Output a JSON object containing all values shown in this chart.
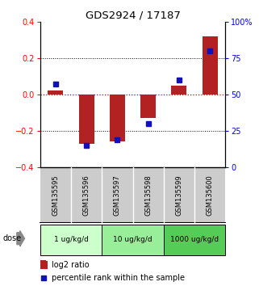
{
  "title": "GDS2924 / 17187",
  "samples": [
    "GSM135595",
    "GSM135596",
    "GSM135597",
    "GSM135598",
    "GSM135599",
    "GSM135600"
  ],
  "log2_ratio": [
    0.02,
    -0.27,
    -0.26,
    -0.13,
    0.05,
    0.32
  ],
  "percentile_rank": [
    57,
    15,
    19,
    30,
    60,
    80
  ],
  "ylim_left": [
    -0.4,
    0.4
  ],
  "ylim_right": [
    0,
    100
  ],
  "yticks_left": [
    -0.4,
    -0.2,
    0.0,
    0.2,
    0.4
  ],
  "yticks_right": [
    0,
    25,
    50,
    75,
    100
  ],
  "ytick_labels_right": [
    "0",
    "25",
    "50",
    "75",
    "100%"
  ],
  "bar_color": "#b22222",
  "dot_color": "#1111bb",
  "zero_line_color": "#cc0000",
  "dose_groups": [
    {
      "label": "1 ug/kg/d",
      "color": "#ccffcc",
      "start": 0,
      "end": 2
    },
    {
      "label": "10 ug/kg/d",
      "color": "#99ee99",
      "start": 2,
      "end": 4
    },
    {
      "label": "1000 ug/kg/d",
      "color": "#55cc55",
      "start": 4,
      "end": 6
    }
  ],
  "dose_label": "dose",
  "legend_log2": "log2 ratio",
  "legend_pct": "percentile rank within the sample",
  "bar_width": 0.5,
  "sample_bg": "#cccccc",
  "sample_divider": "#ffffff"
}
